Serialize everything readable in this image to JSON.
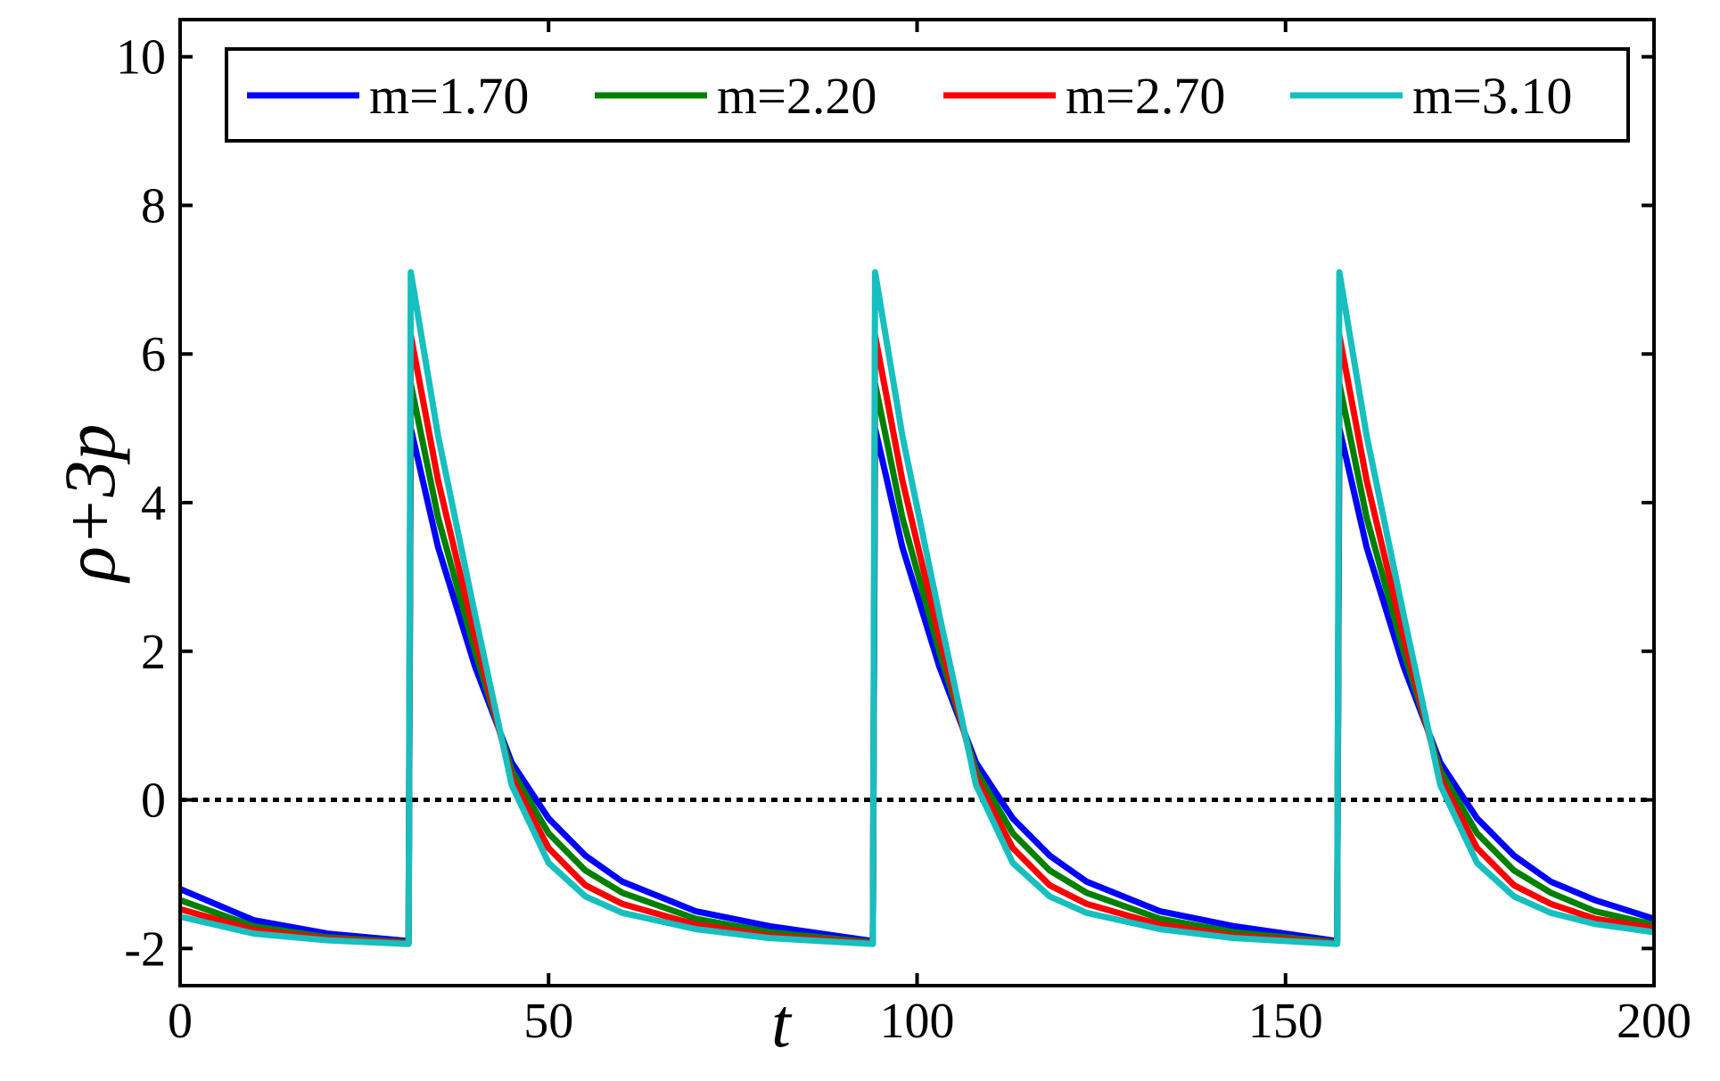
{
  "chart_data": {
    "type": "line",
    "title": "",
    "xlabel": "t",
    "ylabel": "ρ+3p",
    "xlim": [
      0,
      200
    ],
    "ylim": [
      -2.5,
      10.5
    ],
    "xticks": [
      0,
      50,
      100,
      150,
      200
    ],
    "xtick_labels": [
      "0",
      "50",
      "100",
      "150",
      "200"
    ],
    "yticks": [
      -2,
      0,
      2,
      4,
      6,
      8,
      10
    ],
    "ytick_labels": [
      "-2",
      "0",
      "2",
      "4",
      "6",
      "8",
      "10"
    ],
    "grid": false,
    "legend": {
      "position": "top",
      "orientation": "horizontal"
    },
    "reference_line": {
      "y": 0,
      "style": "dotted",
      "color": "#000000"
    },
    "series": [
      {
        "name": "m=1.70",
        "color": "#0000ff",
        "x": [
          0,
          10,
          20,
          31,
          31.3,
          35,
          40,
          45,
          50,
          55,
          60,
          70,
          80,
          94,
          94.3,
          98,
          103,
          108,
          113,
          118,
          123,
          133,
          143,
          157,
          157.3,
          161,
          166,
          171,
          176,
          181,
          186,
          192,
          200
        ],
        "y": [
          -1.2,
          -1.62,
          -1.8,
          -1.9,
          5.0,
          3.4,
          1.8,
          0.5,
          -0.25,
          -0.75,
          -1.1,
          -1.5,
          -1.7,
          -1.9,
          5.0,
          3.4,
          1.8,
          0.5,
          -0.25,
          -0.75,
          -1.1,
          -1.5,
          -1.7,
          -1.9,
          5.0,
          3.4,
          1.8,
          0.5,
          -0.25,
          -0.75,
          -1.1,
          -1.35,
          -1.6
        ]
      },
      {
        "name": "m=2.20",
        "color": "#008000",
        "x": [
          0,
          10,
          20,
          31,
          31.3,
          35,
          40,
          45,
          50,
          55,
          60,
          70,
          80,
          94,
          94.3,
          98,
          103,
          108,
          113,
          118,
          123,
          133,
          143,
          157,
          157.3,
          161,
          166,
          171,
          176,
          181,
          186,
          192,
          200
        ],
        "y": [
          -1.35,
          -1.7,
          -1.85,
          -1.92,
          5.6,
          3.8,
          2.0,
          0.4,
          -0.45,
          -0.95,
          -1.25,
          -1.6,
          -1.78,
          -1.92,
          5.6,
          3.8,
          2.0,
          0.4,
          -0.45,
          -0.95,
          -1.25,
          -1.6,
          -1.78,
          -1.92,
          5.6,
          3.8,
          2.0,
          0.4,
          -0.45,
          -0.95,
          -1.25,
          -1.5,
          -1.68
        ]
      },
      {
        "name": "m=2.70",
        "color": "#ff0000",
        "x": [
          0,
          10,
          20,
          31,
          31.3,
          35,
          40,
          45,
          50,
          55,
          60,
          70,
          80,
          94,
          94.3,
          98,
          103,
          108,
          113,
          118,
          123,
          133,
          143,
          157,
          157.3,
          161,
          166,
          171,
          176,
          181,
          186,
          192,
          200
        ],
        "y": [
          -1.47,
          -1.75,
          -1.87,
          -1.93,
          6.25,
          4.3,
          2.2,
          0.3,
          -0.65,
          -1.15,
          -1.4,
          -1.68,
          -1.83,
          -1.93,
          6.25,
          4.3,
          2.2,
          0.3,
          -0.65,
          -1.15,
          -1.4,
          -1.68,
          -1.83,
          -1.93,
          6.25,
          4.3,
          2.2,
          0.3,
          -0.65,
          -1.15,
          -1.4,
          -1.6,
          -1.73
        ]
      },
      {
        "name": "m=3.10",
        "color": "#17bfbf",
        "x": [
          0,
          10,
          20,
          31,
          31.3,
          35,
          40,
          45,
          50,
          55,
          60,
          70,
          80,
          94,
          94.3,
          98,
          103,
          108,
          113,
          118,
          123,
          133,
          143,
          157,
          157.3,
          161,
          166,
          171,
          176,
          181,
          186,
          192,
          200
        ],
        "y": [
          -1.57,
          -1.8,
          -1.89,
          -1.94,
          7.1,
          4.9,
          2.5,
          0.2,
          -0.85,
          -1.3,
          -1.52,
          -1.74,
          -1.86,
          -1.94,
          7.1,
          4.9,
          2.5,
          0.2,
          -0.85,
          -1.3,
          -1.52,
          -1.74,
          -1.86,
          -1.94,
          7.1,
          4.9,
          2.5,
          0.2,
          -0.85,
          -1.3,
          -1.52,
          -1.67,
          -1.78
        ]
      }
    ]
  }
}
